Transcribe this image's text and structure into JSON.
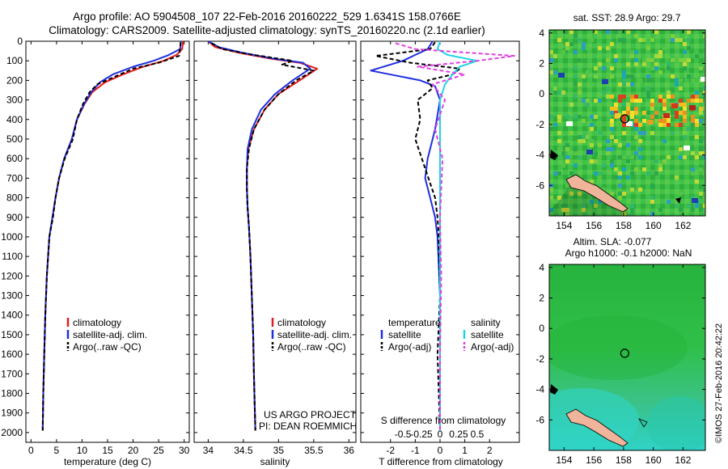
{
  "header": {
    "line1": "Argo profile: AO 5904508_107 22-Feb-2016 20160222_529 1.6341S 158.0766E",
    "line2": "Climatology: CARS2009. Satellite-adjusted climatology: synTS_20160220.nc (2.1d earlier)"
  },
  "colors": {
    "climatology": "#e41a1c",
    "satellite": "#1f2fe0",
    "argo": "#000000",
    "salinity_satellite": "#22d3e6",
    "salinity_argo": "#e040e0"
  },
  "chart_data": [
    {
      "type": "line",
      "name": "temperature-profile",
      "xlabel": "temperature (deg C)",
      "ylim": [
        0,
        2050
      ],
      "xlim": [
        -1,
        31
      ],
      "xticks": [
        "0",
        "5",
        "10",
        "15",
        "20",
        "25",
        "30"
      ],
      "xtick_values": [
        0,
        5,
        10,
        15,
        20,
        25,
        30
      ],
      "yticks": [
        "0",
        "100",
        "200",
        "300",
        "400",
        "500",
        "600",
        "700",
        "800",
        "900",
        "1000",
        "1100",
        "1200",
        "1300",
        "1400",
        "1500",
        "1600",
        "1700",
        "1800",
        "1900",
        "2000"
      ],
      "ytick_values": [
        0,
        100,
        200,
        300,
        400,
        500,
        600,
        700,
        800,
        900,
        1000,
        1100,
        1200,
        1300,
        1400,
        1500,
        1600,
        1700,
        1800,
        1900,
        2000
      ],
      "legend": [
        "climatology",
        "satellite-adj. clim.",
        "Argo(..raw -QC)"
      ],
      "series": [
        {
          "name": "climatology",
          "color": "#e41a1c",
          "dash": "",
          "x": [
            29.8,
            29.6,
            28.5,
            26,
            22,
            18,
            14.5,
            12,
            10.5,
            9,
            8,
            6.5,
            5.5,
            4.8,
            4.2,
            3.6,
            3.1,
            2.8,
            2.6,
            2.4,
            2.3
          ],
          "y": [
            0,
            40,
            70,
            100,
            130,
            170,
            210,
            260,
            320,
            400,
            500,
            600,
            700,
            800,
            900,
            1000,
            1200,
            1400,
            1600,
            1800,
            1990
          ]
        },
        {
          "name": "satellite-adj. clim.",
          "color": "#1f2fe0",
          "dash": "",
          "x": [
            29.4,
            29.2,
            27,
            24,
            20,
            16,
            13.5,
            11.8,
            10.4,
            9,
            8,
            6.5,
            5.5,
            4.8,
            4.2,
            3.6,
            3.1,
            2.8,
            2.6,
            2.4,
            2.3
          ],
          "y": [
            0,
            40,
            70,
            100,
            130,
            170,
            210,
            260,
            320,
            400,
            500,
            600,
            700,
            800,
            900,
            1000,
            1200,
            1400,
            1600,
            1800,
            1990
          ]
        },
        {
          "name": "Argo(..raw -QC)",
          "color": "#000000",
          "dash": "5,3",
          "x": [
            29.3,
            29.2,
            29.0,
            25,
            20,
            16.5,
            13,
            11.5,
            10.2,
            9.0,
            8.2,
            6.6,
            5.5,
            4.8,
            4.3,
            3.6,
            3.1,
            2.8,
            2.6,
            2.4,
            2.3
          ],
          "y": [
            5,
            40,
            75,
            110,
            140,
            180,
            220,
            260,
            320,
            400,
            500,
            600,
            700,
            800,
            900,
            1000,
            1200,
            1400,
            1600,
            1800,
            1990
          ]
        }
      ]
    },
    {
      "type": "line",
      "name": "salinity-profile",
      "xlabel": "salinity",
      "ylim": [
        0,
        2050
      ],
      "xlim": [
        33.8,
        36.1
      ],
      "xticks": [
        "34",
        "34.5",
        "35",
        "35.5",
        "36"
      ],
      "xtick_values": [
        34,
        34.5,
        35,
        35.5,
        36
      ],
      "legend": [
        "climatology",
        "satellite-adj. clim.",
        "Argo(..raw -QC)"
      ],
      "annotation": [
        "US ARGO PROJECT",
        "PI: DEAN ROEMMICH"
      ],
      "series": [
        {
          "name": "climatology",
          "color": "#e41a1c",
          "dash": "",
          "x": [
            34.0,
            34.1,
            34.45,
            34.9,
            35.3,
            35.55,
            35.3,
            35.0,
            34.8,
            34.65,
            34.57,
            34.55,
            34.55,
            34.56,
            34.58,
            34.6,
            34.62,
            34.64,
            34.65,
            34.66,
            34.67
          ],
          "y": [
            0,
            30,
            60,
            90,
            110,
            140,
            200,
            270,
            350,
            450,
            550,
            650,
            750,
            850,
            950,
            1100,
            1300,
            1500,
            1700,
            1850,
            1990
          ]
        },
        {
          "name": "satellite-adj. clim.",
          "color": "#1f2fe0",
          "dash": "",
          "x": [
            34.0,
            34.15,
            34.5,
            34.95,
            35.35,
            35.45,
            35.2,
            34.95,
            34.75,
            34.62,
            34.56,
            34.55,
            34.55,
            34.56,
            34.58,
            34.6,
            34.62,
            34.64,
            34.65,
            34.66,
            34.67
          ],
          "y": [
            0,
            30,
            60,
            90,
            110,
            140,
            200,
            270,
            350,
            450,
            550,
            650,
            750,
            850,
            950,
            1100,
            1300,
            1500,
            1700,
            1850,
            1990
          ]
        },
        {
          "name": "Argo(..raw -QC)",
          "color": "#000000",
          "dash": "5,3",
          "x": [
            34.05,
            34.2,
            34.65,
            35.2,
            35.05,
            35.5,
            35.25,
            35.0,
            34.8,
            34.65,
            34.58,
            34.55,
            34.55,
            34.56,
            34.58,
            34.6,
            34.62,
            34.64,
            34.65,
            34.66,
            34.67
          ],
          "y": [
            10,
            40,
            70,
            100,
            120,
            150,
            200,
            270,
            350,
            450,
            550,
            650,
            750,
            850,
            950,
            1100,
            1300,
            1500,
            1700,
            1850,
            1990
          ]
        }
      ]
    },
    {
      "type": "line",
      "name": "difference-profile",
      "xlabel": "T difference from climatology",
      "title_bottom": "S difference from climatology",
      "ylim": [
        0,
        2050
      ],
      "xlim": [
        -3.2,
        3.2
      ],
      "xticks": [
        "-2",
        "-1",
        "0",
        "1",
        "2"
      ],
      "xtick_values": [
        -2,
        -1,
        0,
        1,
        2
      ],
      "top_ticks": [
        "-0.5",
        "-0.25",
        "0",
        "0.25",
        "0.5"
      ],
      "legend_temperature": {
        "title": "temperature",
        "items": [
          "satellite",
          "Argo(-adj)"
        ]
      },
      "legend_salinity": {
        "title": "salinity",
        "items": [
          "satellite",
          "Argo(-adj)"
        ]
      },
      "series": [
        {
          "name": "temperature satellite",
          "color": "#1f2fe0",
          "dash": "",
          "x": [
            -0.3,
            -0.5,
            -1.0,
            -1.5,
            -2.8,
            -1.8,
            -0.8,
            -0.2,
            0.0,
            -0.2,
            -0.5,
            -0.6,
            -0.4,
            -0.2,
            -0.1,
            0.0,
            0.0,
            0.0
          ],
          "y": [
            0,
            40,
            70,
            100,
            150,
            175,
            200,
            230,
            300,
            450,
            600,
            700,
            800,
            900,
            1000,
            1300,
            1600,
            1990
          ]
        },
        {
          "name": "temperature Argo(-adj)",
          "color": "#000000",
          "dash": "5,3",
          "x": [
            -0.2,
            -0.4,
            -2.6,
            -1.2,
            0.8,
            0.5,
            -0.5,
            -0.3,
            -0.9,
            -0.8,
            -1.0,
            -0.6,
            -0.2,
            -0.1,
            -0.05,
            0.0,
            -0.1,
            0.0
          ],
          "y": [
            5,
            40,
            75,
            110,
            140,
            170,
            200,
            240,
            300,
            400,
            500,
            650,
            800,
            900,
            1000,
            1300,
            1600,
            1990
          ]
        },
        {
          "name": "salinity satellite",
          "color": "#22d3e6",
          "dash": "",
          "x": [
            0.0,
            -0.1,
            0.3,
            1.5,
            0.8,
            0.5,
            0.2,
            0.0,
            0.0,
            0.0,
            0.0,
            0.0,
            0.0,
            0.0
          ],
          "y": [
            0,
            40,
            70,
            100,
            130,
            170,
            220,
            300,
            500,
            800,
            1100,
            1400,
            1700,
            1990
          ]
        },
        {
          "name": "salinity Argo(-adj)",
          "color": "#e040e0",
          "dash": "5,3",
          "x": [
            -1.8,
            -1.0,
            3.0,
            1.5,
            -0.9,
            1.0,
            -0.3,
            0.2,
            -0.2,
            0.1,
            0.0,
            0.05,
            0.0,
            0.0
          ],
          "y": [
            10,
            40,
            75,
            100,
            130,
            170,
            220,
            300,
            450,
            600,
            900,
            1200,
            1600,
            1990
          ]
        }
      ]
    },
    {
      "type": "heatmap",
      "name": "sst-map",
      "title": "sat. SST: 28.9 Argo: 29.7",
      "xticks": [
        "154",
        "156",
        "158",
        "160",
        "162"
      ],
      "yticks": [
        "4",
        "2",
        "0",
        "-2",
        "-4",
        "-6"
      ],
      "xlim": [
        153,
        163.5
      ],
      "ylim": [
        -8,
        4.2
      ],
      "marker": {
        "lon": 158.08,
        "lat": -1.63
      }
    },
    {
      "type": "heatmap",
      "name": "sla-map",
      "title": "Altim. SLA: -0.077",
      "subtitle": "Argo h1000: -0.1 h2000: NaN",
      "xticks": [
        "154",
        "156",
        "158",
        "160",
        "162"
      ],
      "yticks": [
        "4",
        "2",
        "0",
        "-2",
        "-4",
        "-6"
      ],
      "xlim": [
        153,
        163.5
      ],
      "ylim": [
        -8,
        4.2
      ],
      "marker": {
        "lon": 158.08,
        "lat": -1.63
      }
    }
  ],
  "watermark": "©IMOS 27-Feb-2016 20:42:22"
}
